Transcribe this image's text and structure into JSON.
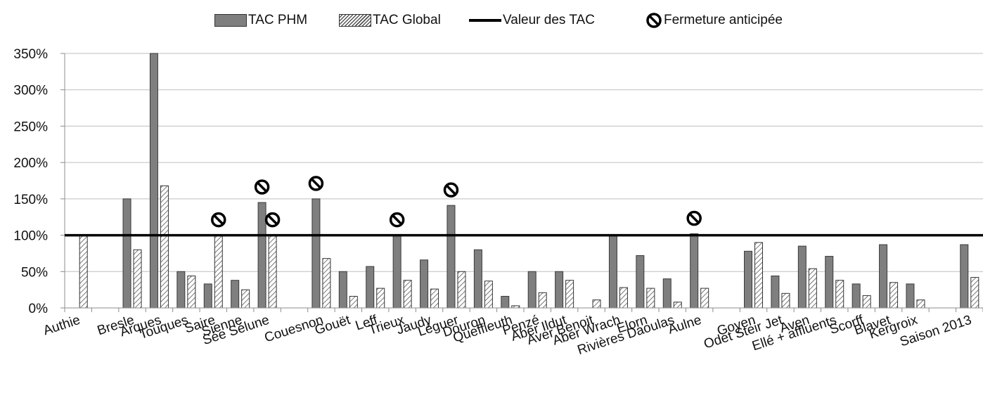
{
  "colors": {
    "phm": "#7f7f7f",
    "global_hatch": "#555555",
    "threshold_line": "#000000",
    "grid": "#bfbfbf",
    "axis": "#8c8c8c"
  },
  "legend": {
    "phm": "TAC PHM",
    "global": "TAC Global",
    "line": "Valeur des TAC",
    "closure": "Fermeture anticipée"
  },
  "chart_data": {
    "type": "bar",
    "ylim": [
      0,
      3.5
    ],
    "yticks": [
      0,
      0.5,
      1,
      1.5,
      2,
      2.5,
      3,
      3.5
    ],
    "ytick_labels": [
      "0%",
      "50%",
      "100%",
      "150%",
      "200%",
      "250%",
      "300%",
      "350%"
    ],
    "threshold": 1.0,
    "grid": true,
    "legend_position": "top",
    "categories": [
      "Authie",
      "",
      "Bresle",
      "Arques",
      "Touques",
      "Saire",
      "Sienne",
      "Sée Sélune",
      "",
      "Couesnon",
      "Gouët",
      "Leff",
      "Trieux",
      "Jaudy",
      "Léguer",
      "Douron",
      "Queffleuth",
      "Penzé",
      "Aber Ildut",
      "Aver Benoit",
      "Aber Wrach",
      "Elorn",
      "Rivières Daoulas",
      "Aulne",
      "",
      "Goyen",
      "Odet Steir Jet",
      "Aven",
      "Ellé + affluents",
      "Scorff",
      "Blavet",
      "Kergroix",
      "",
      "Saison 2013"
    ],
    "series": [
      {
        "name": "TAC PHM",
        "values": [
          null,
          null,
          1.5,
          3.5,
          0.5,
          0.33,
          0.38,
          1.45,
          null,
          1.5,
          0.5,
          0.57,
          1.0,
          0.66,
          1.41,
          0.8,
          0.16,
          0.5,
          0.5,
          null,
          1.0,
          0.72,
          0.4,
          1.02,
          null,
          0.78,
          0.44,
          0.85,
          0.71,
          0.33,
          0.87,
          0.33,
          null,
          0.87
        ]
      },
      {
        "name": "TAC Global",
        "values": [
          1.0,
          null,
          0.8,
          1.68,
          0.44,
          1.0,
          0.25,
          1.0,
          null,
          0.68,
          0.16,
          0.27,
          0.38,
          0.26,
          0.5,
          0.37,
          0.03,
          0.21,
          0.38,
          0.11,
          0.28,
          0.27,
          0.08,
          0.27,
          null,
          0.9,
          0.2,
          0.54,
          0.38,
          0.17,
          0.35,
          0.11,
          null,
          0.42
        ]
      }
    ],
    "closures": [
      {
        "category": "Saire",
        "series": "TAC Global"
      },
      {
        "category": "Sée Sélune",
        "series": "TAC PHM"
      },
      {
        "category": "Sée Sélune",
        "series": "TAC Global"
      },
      {
        "category": "Couesnon",
        "series": "TAC PHM"
      },
      {
        "category": "Trieux",
        "series": "TAC PHM"
      },
      {
        "category": "Léguer",
        "series": "TAC PHM"
      },
      {
        "category": "Aulne",
        "series": "TAC PHM"
      }
    ]
  }
}
